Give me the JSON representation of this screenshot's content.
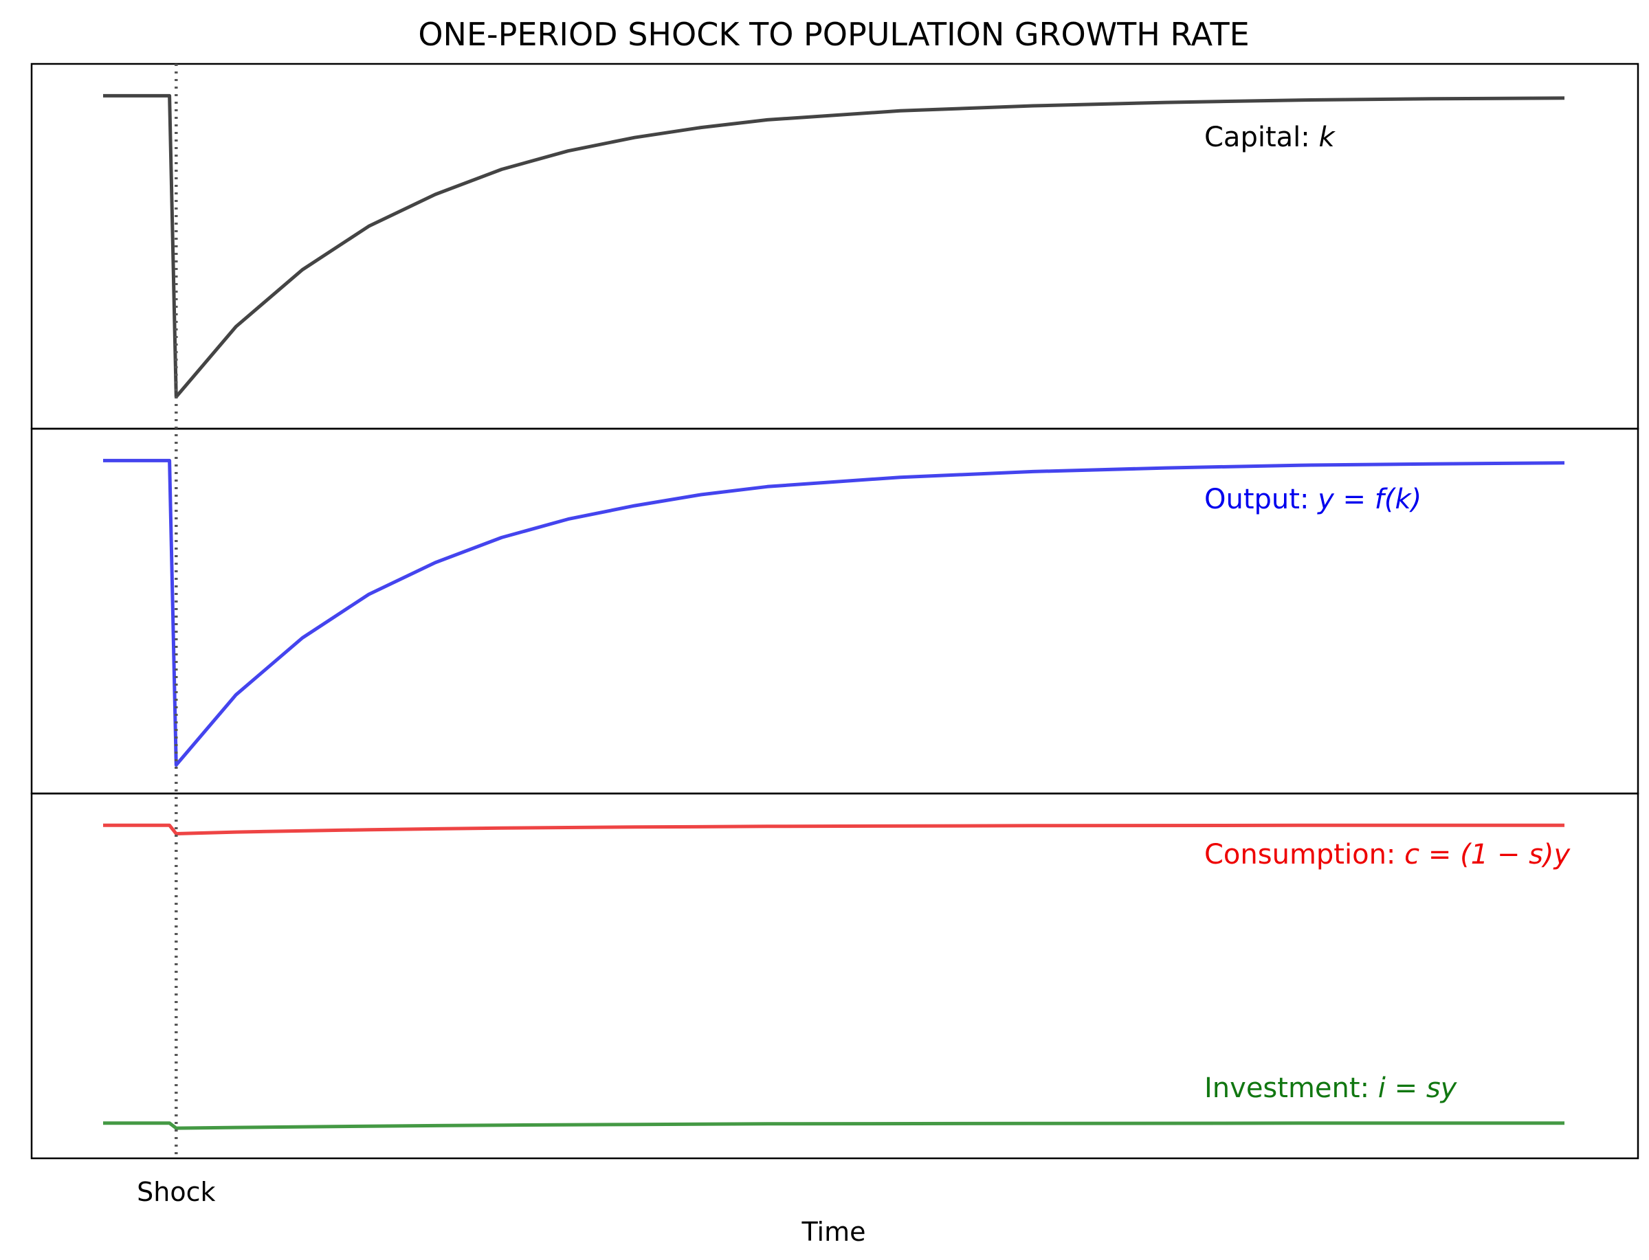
{
  "chart_data": {
    "type": "line",
    "title": "ONE-PERIOD SHOCK TO POPULATION GROWTH RATE",
    "xlabel": "Time",
    "ylabel": "",
    "xticks": [
      {
        "x": 11,
        "label": "Shock"
      }
    ],
    "shock_x": 11,
    "xlim": [
      0,
      232
    ],
    "grid": false,
    "panels": [
      {
        "ylim": [
          0.0,
          1.0
        ],
        "series": [
          {
            "name": "Capital: k",
            "label_prefix": "Capital: ",
            "label_math": "k",
            "color": "#444444",
            "x": [
              0,
              10,
              11,
              20,
              30,
              40,
              50,
              60,
              70,
              80,
              90,
              100,
              120,
              140,
              160,
              180,
              200,
              220
            ],
            "y": [
              0.95,
              0.95,
              0.05,
              0.26,
              0.43,
              0.56,
              0.655,
              0.73,
              0.785,
              0.825,
              0.855,
              0.878,
              0.905,
              0.92,
              0.93,
              0.937,
              0.941,
              0.943
            ]
          }
        ]
      },
      {
        "ylim": [
          0.0,
          1.0
        ],
        "series": [
          {
            "name": "Output: y = f(k)",
            "label_prefix": "Output: ",
            "label_math": "y = f(k)",
            "color": "#4444ee",
            "x": [
              0,
              10,
              11,
              20,
              30,
              40,
              50,
              60,
              70,
              80,
              90,
              100,
              120,
              140,
              160,
              180,
              200,
              220
            ],
            "y": [
              0.95,
              0.95,
              0.04,
              0.25,
              0.42,
              0.55,
              0.645,
              0.72,
              0.775,
              0.815,
              0.848,
              0.872,
              0.9,
              0.917,
              0.928,
              0.936,
              0.94,
              0.943
            ]
          }
        ]
      },
      {
        "ylim": [
          0.0,
          1.0
        ],
        "series": [
          {
            "name": "Consumption: c = (1 − s)y",
            "label_prefix": "Consumption: ",
            "label_math": "c = (1 − s)y",
            "color": "#ee4444",
            "x": [
              0,
              10,
              11,
              20,
              40,
              60,
              80,
              100,
              140,
              180,
              220
            ],
            "y": [
              0.95,
              0.95,
              0.925,
              0.93,
              0.937,
              0.942,
              0.945,
              0.947,
              0.949,
              0.95,
              0.95
            ]
          },
          {
            "name": "Investment: i = sy",
            "label_prefix": "Investment: ",
            "label_math": "i = sy",
            "color": "#449944",
            "x": [
              0,
              10,
              11,
              20,
              40,
              60,
              80,
              100,
              140,
              180,
              220
            ],
            "y": [
              0.06,
              0.06,
              0.045,
              0.047,
              0.051,
              0.054,
              0.056,
              0.058,
              0.059,
              0.06,
              0.06
            ]
          }
        ]
      }
    ]
  }
}
